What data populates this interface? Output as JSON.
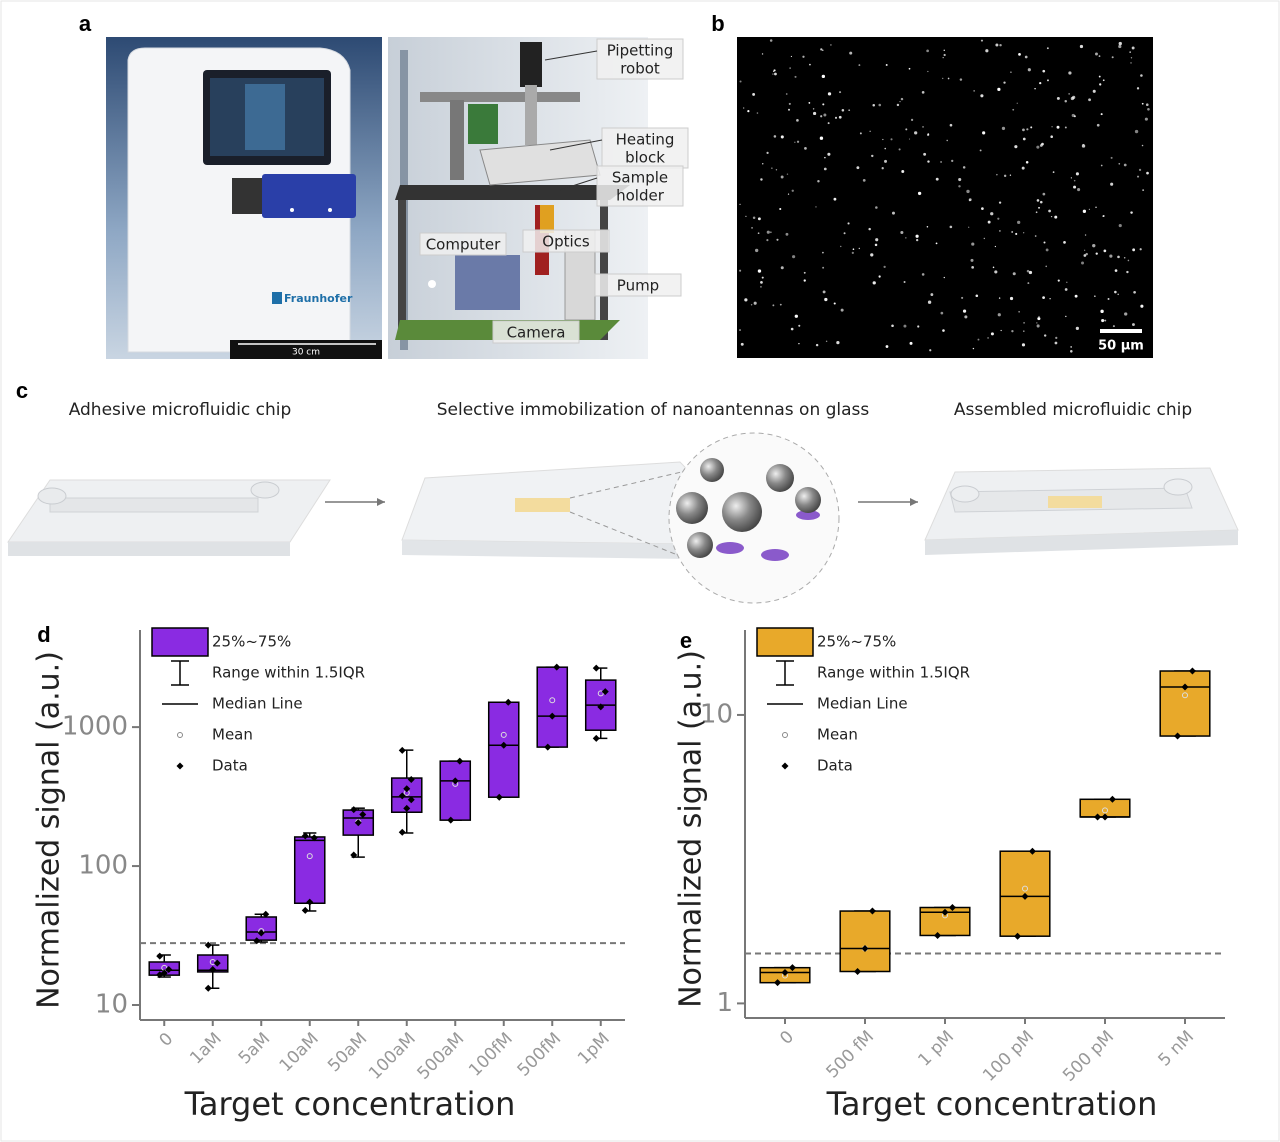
{
  "labels": [
    "a",
    "b",
    "c",
    "d",
    "e"
  ],
  "panel_a": {
    "scale_bar": "30 cm",
    "callouts": [
      [
        "Pipetting",
        "robot"
      ],
      [
        "Heating",
        "block"
      ],
      [
        "Sample",
        "holder"
      ],
      [
        "Computer"
      ],
      [
        "Optics"
      ],
      [
        "Pump"
      ],
      [
        "Camera"
      ]
    ]
  },
  "panel_b": {
    "scale_bar": "50 µm"
  },
  "panel_c": {
    "steps": [
      "Adhesive microfluidic chip",
      "Selective immobilization of nanoantennas on glass",
      "Assembled microfluidic chip"
    ]
  },
  "chart_data": [
    {
      "type": "box",
      "y_label": "Normalized signal (a.u.)",
      "x_label": "Target concentration",
      "color": "#8a2be2",
      "log_y": true,
      "ylim": [
        7.8,
        5000
      ],
      "yticks": [
        10,
        100,
        1000
      ],
      "threshold": 27.9,
      "legend": [
        "25%~75%",
        "Range within 1.5IQR",
        "Median Line",
        "Mean",
        "Data"
      ],
      "legend_position": "top-left",
      "categories": [
        "0",
        "1aM",
        "5aM",
        "10aM",
        "50aM",
        "100aM",
        "500aM",
        "100fM",
        "500fM",
        "1pM"
      ],
      "boxes": [
        {
          "q1": 16.4,
          "median": 17.8,
          "q3": 20.4,
          "whisker_low": 15.9,
          "whisker_high": 22.9,
          "mean": 18.5,
          "points": [
            16.5,
            17,
            18,
            22.5
          ]
        },
        {
          "q1": 17.3,
          "median": 17.8,
          "q3": 22.9,
          "whisker_low": 13.2,
          "whisker_high": 27,
          "mean": 20.4,
          "points": [
            13.2,
            18,
            20,
            27
          ]
        },
        {
          "q1": 29.3,
          "median": 33.5,
          "q3": 43,
          "whisker_low": 28.4,
          "whisker_high": 45,
          "mean": 34,
          "points": [
            29,
            33,
            45
          ]
        },
        {
          "q1": 54,
          "median": 153,
          "q3": 162,
          "whisker_low": 47.5,
          "whisker_high": 173,
          "mean": 118,
          "points": [
            48,
            55,
            160,
            165
          ]
        },
        {
          "q1": 167,
          "median": 222,
          "q3": 253,
          "whisker_low": 116,
          "whisker_high": 261,
          "mean": 207,
          "points": [
            120,
            205,
            235,
            255
          ]
        },
        {
          "q1": 244,
          "median": 315,
          "q3": 430,
          "whisker_low": 173,
          "whisker_high": 683,
          "mean": 336,
          "points": [
            175,
            260,
            300,
            320,
            360,
            420,
            680
          ]
        },
        {
          "q1": 214,
          "median": 410,
          "q3": 569,
          "whisker_low": 214,
          "whisker_high": 569,
          "mean": 390,
          "points": [
            214,
            410,
            569
          ]
        },
        {
          "q1": 313,
          "median": 740,
          "q3": 1510,
          "whisker_low": 313,
          "whisker_high": 1510,
          "mean": 880,
          "points": [
            313,
            740,
            1510
          ]
        },
        {
          "q1": 718,
          "median": 1200,
          "q3": 2700,
          "whisker_low": 718,
          "whisker_high": 2700,
          "mean": 1560,
          "points": [
            718,
            1200,
            2700
          ]
        },
        {
          "q1": 950,
          "median": 1440,
          "q3": 2180,
          "whisker_low": 830,
          "whisker_high": 2660,
          "mean": 1750,
          "points": [
            830,
            1400,
            1800,
            2660
          ]
        }
      ]
    },
    {
      "type": "box",
      "y_label": "Normalized signal (a.u.)",
      "x_label": "Target concentration",
      "color": "#e8a92a",
      "log_y": true,
      "ylim": [
        0.89,
        19.7
      ],
      "yticks": [
        1,
        10
      ],
      "threshold": 1.49,
      "legend": [
        "25%~75%",
        "Range within 1.5IQR",
        "Median Line",
        "Mean",
        "Data"
      ],
      "legend_position": "top-left",
      "categories": [
        "0",
        "500 fM",
        "1 pM",
        "100 pM",
        "500 pM",
        "5 nM"
      ],
      "boxes": [
        {
          "q1": 1.18,
          "median": 1.28,
          "q3": 1.33,
          "whisker_low": 1.18,
          "whisker_high": 1.33,
          "mean": 1.25,
          "points": [
            1.18,
            1.28,
            1.33
          ]
        },
        {
          "q1": 1.29,
          "median": 1.55,
          "q3": 2.09,
          "whisker_low": 1.29,
          "whisker_high": 2.09,
          "mean": 1.55,
          "points": [
            1.29,
            1.55,
            2.09
          ]
        },
        {
          "q1": 1.72,
          "median": 2.07,
          "q3": 2.15,
          "whisker_low": 1.72,
          "whisker_high": 2.15,
          "mean": 2.02,
          "points": [
            1.72,
            2.07,
            2.15
          ]
        },
        {
          "q1": 1.71,
          "median": 2.35,
          "q3": 3.37,
          "whisker_low": 1.71,
          "whisker_high": 3.37,
          "mean": 2.5,
          "points": [
            1.71,
            2.35,
            3.37
          ]
        },
        {
          "q1": 4.43,
          "median": 4.43,
          "q3": 5.1,
          "whisker_low": 4.43,
          "whisker_high": 5.1,
          "mean": 4.67,
          "points": [
            4.43,
            4.43,
            5.1
          ]
        },
        {
          "q1": 8.45,
          "median": 12.5,
          "q3": 14.2,
          "whisker_low": 8.45,
          "whisker_high": 14.2,
          "mean": 11.7,
          "points": [
            8.45,
            12.5,
            14.2
          ]
        }
      ]
    }
  ]
}
